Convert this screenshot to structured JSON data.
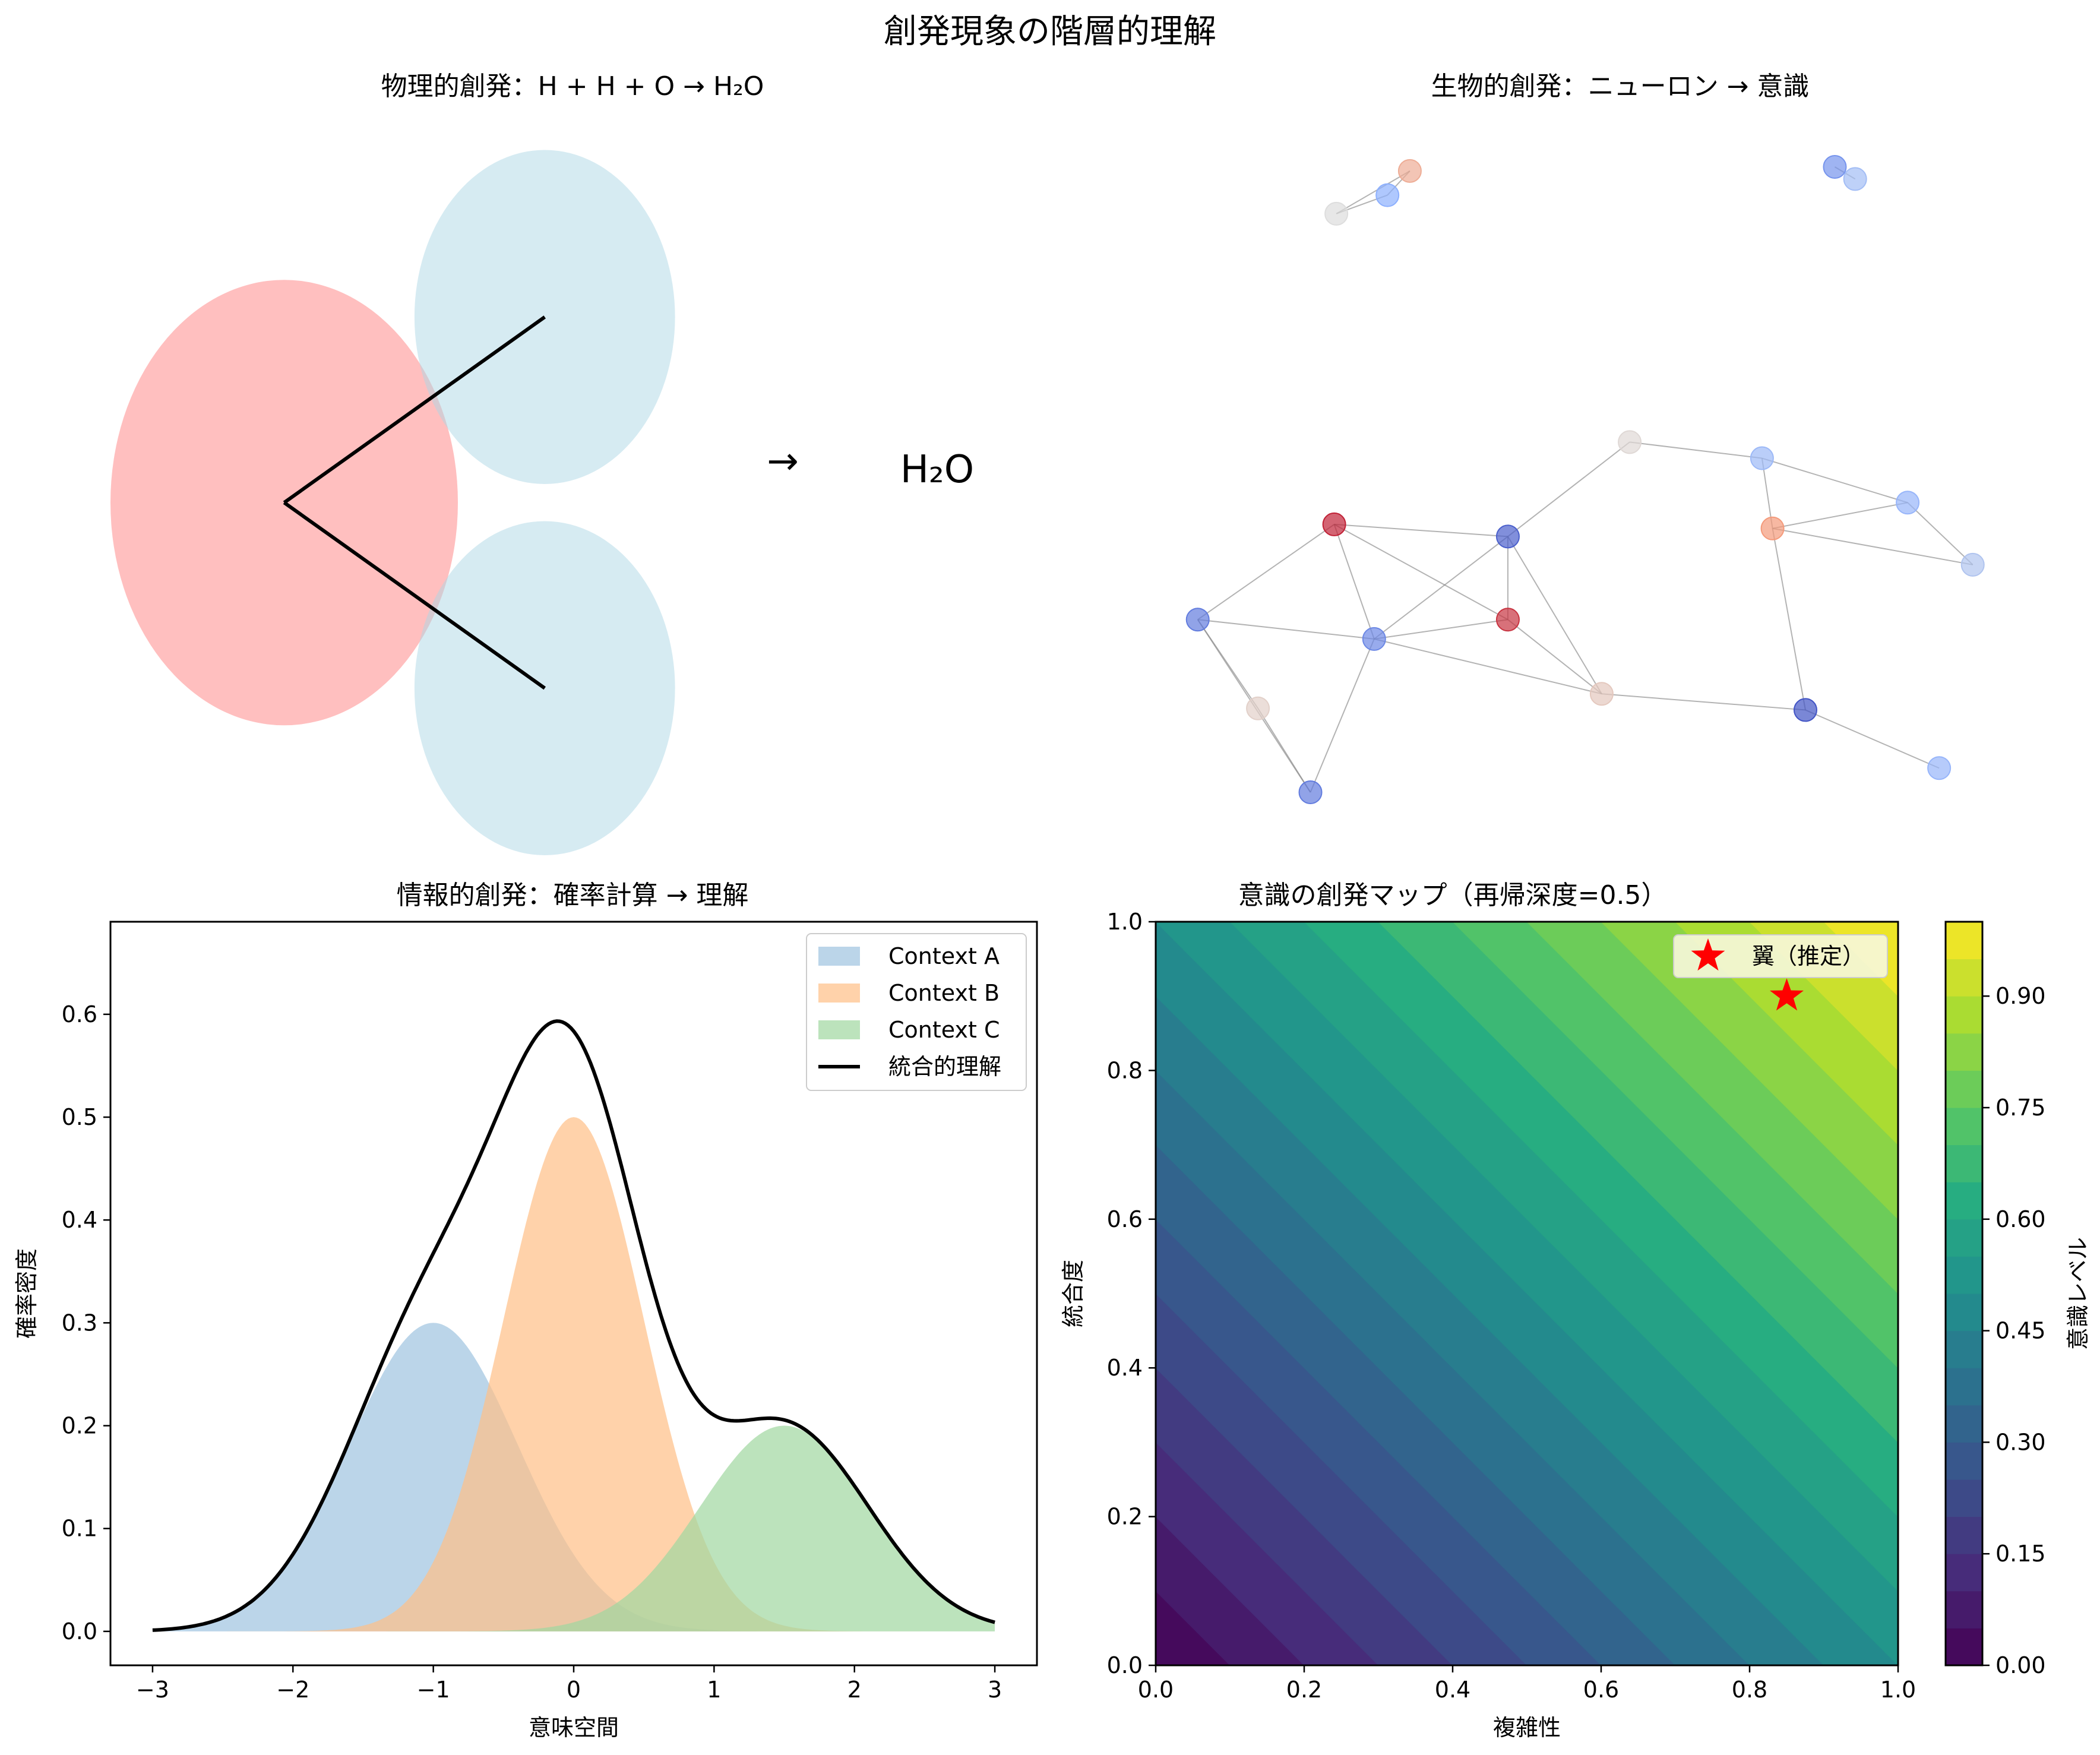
{
  "figure": {
    "suptitle": "創発現象の階層的理解"
  },
  "colors": {
    "oxygen": "#ff7f7f",
    "hydrogen": "#add8e6",
    "bond": "#000000",
    "context_a": "#9ec3df",
    "context_b": "#ffbf86",
    "context_c": "#9fd79f",
    "integrated": "#000000",
    "marker": "#ff0000",
    "legend_box": "#f7f7dc"
  },
  "panels": {
    "physical": {
      "title": "物理的創発：H + H + O → H₂O",
      "arrow": "→",
      "product": "H₂O"
    },
    "biological": {
      "title": "生物的創発：ニューロン → 意識"
    },
    "information": {
      "title": "情報的創発：確率計算 → 理解"
    },
    "consciousness": {
      "title": "意識の創発マップ（再帰深度=0.5）"
    }
  },
  "chart_data": [
    {
      "type": "scatter",
      "panel": "physical",
      "title": "物理的創発：H + H + O → H₂O",
      "atoms": [
        {
          "element": "O",
          "x": 0,
          "y": 0,
          "r": 0.6,
          "color": "#ff7f7f"
        },
        {
          "element": "H",
          "x": 0.9,
          "y": 0.5,
          "r": 0.45,
          "color": "#add8e6"
        },
        {
          "element": "H",
          "x": 0.9,
          "y": -0.5,
          "r": 0.45,
          "color": "#add8e6"
        }
      ],
      "bonds": [
        [
          0,
          1
        ],
        [
          0,
          2
        ]
      ],
      "xlim": [
        -0.6,
        2.6
      ],
      "ylim": [
        -0.95,
        1.05
      ]
    },
    {
      "type": "scatter",
      "panel": "biological",
      "title": "生物的創発：ニューロン → 意識",
      "nodes": [
        {
          "x": 1.98,
          "y": 9.25,
          "value": 0.5
        },
        {
          "x": 2.71,
          "y": 9.48,
          "value": 0.25
        },
        {
          "x": 3.03,
          "y": 9.78,
          "value": 0.68
        },
        {
          "x": 9.1,
          "y": 9.83,
          "value": 0.18
        },
        {
          "x": 9.39,
          "y": 9.68,
          "value": 0.32
        },
        {
          "x": 6.17,
          "y": 6.42,
          "value": 0.52
        },
        {
          "x": 8.06,
          "y": 6.22,
          "value": 0.3
        },
        {
          "x": 8.21,
          "y": 5.35,
          "value": 0.75
        },
        {
          "x": 10.14,
          "y": 5.67,
          "value": 0.28
        },
        {
          "x": 11.07,
          "y": 4.9,
          "value": 0.36
        },
        {
          "x": 1.95,
          "y": 5.4,
          "value": 0.95
        },
        {
          "x": 4.43,
          "y": 5.25,
          "value": 0.05
        },
        {
          "x": 0.0,
          "y": 4.22,
          "value": 0.12
        },
        {
          "x": 2.52,
          "y": 3.98,
          "value": 0.15
        },
        {
          "x": 4.43,
          "y": 4.22,
          "value": 0.92
        },
        {
          "x": 5.77,
          "y": 3.3,
          "value": 0.58
        },
        {
          "x": 0.86,
          "y": 3.12,
          "value": 0.55
        },
        {
          "x": 1.61,
          "y": 2.08,
          "value": 0.12
        },
        {
          "x": 8.68,
          "y": 3.1,
          "value": 0.02
        },
        {
          "x": 10.59,
          "y": 2.38,
          "value": 0.28
        }
      ],
      "edges": [
        [
          0,
          1
        ],
        [
          1,
          2
        ],
        [
          0,
          2
        ],
        [
          3,
          4
        ],
        [
          5,
          6
        ],
        [
          6,
          7
        ],
        [
          6,
          8
        ],
        [
          7,
          8
        ],
        [
          7,
          9
        ],
        [
          8,
          9
        ],
        [
          5,
          11
        ],
        [
          10,
          11
        ],
        [
          10,
          12
        ],
        [
          10,
          13
        ],
        [
          10,
          14
        ],
        [
          11,
          13
        ],
        [
          11,
          14
        ],
        [
          12,
          13
        ],
        [
          12,
          16
        ],
        [
          12,
          17
        ],
        [
          13,
          14
        ],
        [
          13,
          15
        ],
        [
          13,
          17
        ],
        [
          14,
          15
        ],
        [
          15,
          18
        ],
        [
          16,
          17
        ],
        [
          18,
          19
        ],
        [
          7,
          18
        ],
        [
          11,
          15
        ]
      ],
      "xlim": [
        -0.6,
        11.7
      ],
      "ylim": [
        1.3,
        10.5
      ]
    },
    {
      "type": "area",
      "panel": "information",
      "title": "情報的創発：確率計算 → 理解",
      "xlabel": "意味空間",
      "ylabel": "確率密度",
      "xlim": [
        -3.3,
        3.3
      ],
      "ylim": [
        -0.033,
        0.69
      ],
      "xticks": [
        -3,
        -2,
        -1,
        0,
        1,
        2,
        3
      ],
      "xtick_labels": [
        "−3",
        "−2",
        "−1",
        "0",
        "1",
        "2",
        "3"
      ],
      "yticks": [
        0.0,
        0.1,
        0.2,
        0.3,
        0.4,
        0.5,
        0.6
      ],
      "ytick_labels": [
        "0.0",
        "0.1",
        "0.2",
        "0.3",
        "0.4",
        "0.5",
        "0.6"
      ],
      "x_range": [
        -3,
        3
      ],
      "series": [
        {
          "name": "Context A",
          "kind": "fill",
          "peak": 0.3,
          "mean": -1.0,
          "sd": 0.6
        },
        {
          "name": "Context B",
          "kind": "fill",
          "peak": 0.5,
          "mean": 0.0,
          "sd": 0.5
        },
        {
          "name": "Context C",
          "kind": "fill",
          "peak": 0.2,
          "mean": 1.5,
          "sd": 0.6
        },
        {
          "name": "統合的理解",
          "kind": "line",
          "combination": "sum of Context A, B, C"
        }
      ],
      "legend": "top-right",
      "grid": false
    },
    {
      "type": "heatmap",
      "panel": "consciousness",
      "title": "意識の創発マップ（再帰深度=0.5）",
      "xlabel": "複雑性",
      "ylabel": "統合度",
      "xlim": [
        0,
        1
      ],
      "ylim": [
        0,
        1
      ],
      "xticks": [
        0.0,
        0.2,
        0.4,
        0.6,
        0.8,
        1.0
      ],
      "xtick_labels": [
        "0.0",
        "0.2",
        "0.4",
        "0.6",
        "0.8",
        "1.0"
      ],
      "yticks": [
        0.0,
        0.2,
        0.4,
        0.6,
        0.8,
        1.0
      ],
      "ytick_labels": [
        "0.0",
        "0.2",
        "0.4",
        "0.6",
        "0.8",
        "1.0"
      ],
      "z_function": "0.5 * (complexity + integration)",
      "contour_levels": [
        0.0,
        0.05,
        0.1,
        0.15,
        0.2,
        0.25,
        0.3,
        0.35,
        0.4,
        0.45,
        0.5,
        0.55,
        0.6,
        0.65,
        0.7,
        0.75,
        0.8,
        0.85,
        0.9,
        0.95,
        1.0
      ],
      "colormap": "viridis",
      "colorbar": {
        "label": "意識レベル",
        "ticks": [
          0.0,
          0.15,
          0.3,
          0.45,
          0.6,
          0.75,
          0.9
        ],
        "tick_labels": [
          "0.00",
          "0.15",
          "0.30",
          "0.45",
          "0.60",
          "0.75",
          "0.90"
        ],
        "range": [
          0,
          1
        ]
      },
      "marker": {
        "label": "翼（推定）",
        "x": 0.85,
        "y": 0.9,
        "symbol": "star"
      },
      "legend": "top-right"
    }
  ]
}
